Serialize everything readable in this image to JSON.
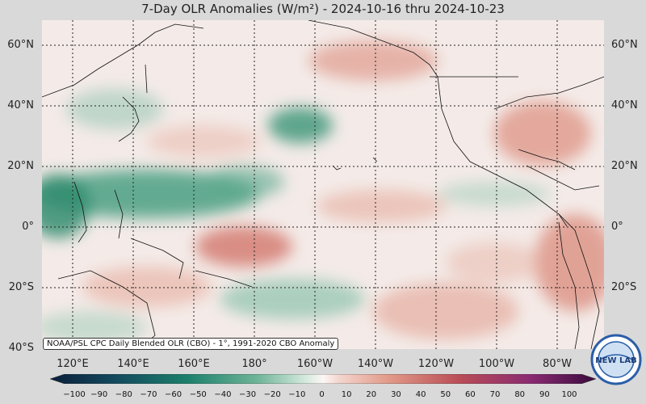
{
  "title": "7-Day OLR Anomalies (W/m²) - 2024-10-16 thru 2024-10-23",
  "lat_labels": [
    "60°N",
    "40°N",
    "20°N",
    "0°",
    "20°S",
    "40°S"
  ],
  "lon_labels": [
    "120°E",
    "140°E",
    "160°E",
    "180°",
    "160°W",
    "140°W",
    "120°W",
    "100°W",
    "80°W"
  ],
  "credit": "NOAA/PSL CPC Daily Blended OLR (CBO) - 1°, 1991-2020 CBO Anomaly",
  "colorbar": {
    "ticks": [
      "−100",
      "−90",
      "−80",
      "−70",
      "−60",
      "−50",
      "−40",
      "−30",
      "−20",
      "−10",
      "0",
      "10",
      "20",
      "30",
      "40",
      "50",
      "60",
      "70",
      "80",
      "90",
      "100"
    ],
    "negative_color": "#0e6b5a",
    "positive_color": "#b23a3a"
  },
  "logo_text": "NEW LAB"
}
